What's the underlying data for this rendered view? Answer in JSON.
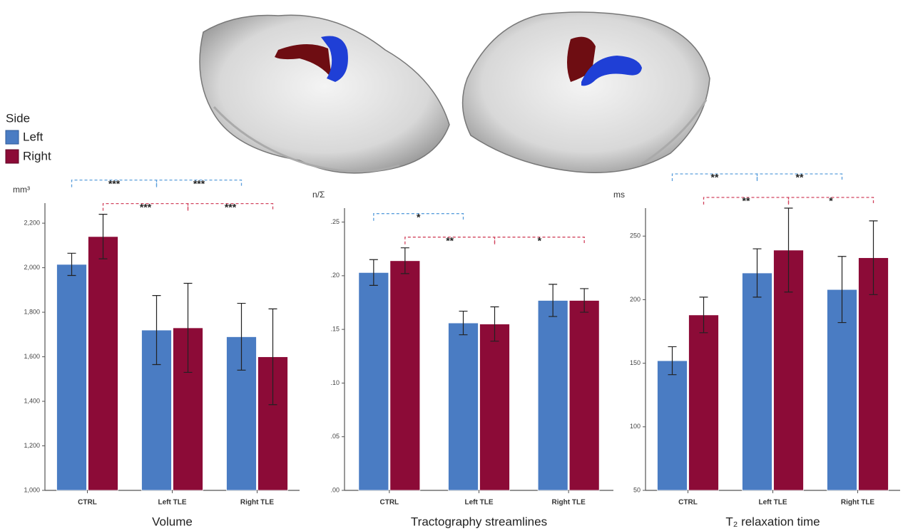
{
  "legend_title": "Side",
  "chart_data": [
    {
      "type": "bar",
      "title": "Volume",
      "y_label": "mm³",
      "categories": [
        "CTRL",
        "Left TLE",
        "Right TLE"
      ],
      "series": [
        {
          "name": "Left",
          "color": "#4a7cc3",
          "values": [
            2015,
            1720,
            1690
          ],
          "errors": [
            50,
            155,
            150
          ]
        },
        {
          "name": "Right",
          "color": "#8c0b37",
          "values": [
            2140,
            1730,
            1600
          ],
          "errors": [
            100,
            200,
            215
          ]
        }
      ],
      "ylim": [
        1000,
        2290
      ],
      "yticks": [
        {
          "value": 1000,
          "label": "1,000"
        },
        {
          "value": 1200,
          "label": "1,200"
        },
        {
          "value": 1400,
          "label": "1,400"
        },
        {
          "value": 1600,
          "label": "1,600"
        },
        {
          "value": 1800,
          "label": "1,800"
        },
        {
          "value": 2000,
          "label": "2,000"
        },
        {
          "value": 2200,
          "label": "2,200"
        }
      ],
      "brackets": [
        {
          "series": "Left",
          "between": [
            "CTRL",
            "Left TLE"
          ],
          "label": "***"
        },
        {
          "series": "Left",
          "between": [
            "Left TLE",
            "Right TLE"
          ],
          "label": "***"
        },
        {
          "series": "Right",
          "between": [
            "CTRL",
            "Left TLE"
          ],
          "label": "***"
        },
        {
          "series": "Right",
          "between": [
            "Left TLE",
            "Right TLE"
          ],
          "label": "***"
        }
      ]
    },
    {
      "type": "bar",
      "title": "Tractography streamlines",
      "y_label": "n/Σ",
      "categories": [
        "CTRL",
        "Left TLE",
        "Right TLE"
      ],
      "series": [
        {
          "name": "Left",
          "color": "#4a7cc3",
          "values": [
            0.203,
            0.156,
            0.177
          ],
          "errors": [
            0.012,
            0.011,
            0.015
          ]
        },
        {
          "name": "Right",
          "color": "#8c0b37",
          "values": [
            0.214,
            0.155,
            0.177
          ],
          "errors": [
            0.012,
            0.016,
            0.011
          ]
        }
      ],
      "ylim": [
        0,
        0.263
      ],
      "yticks": [
        {
          "value": 0,
          "label": ".00"
        },
        {
          "value": 0.05,
          "label": ".05"
        },
        {
          "value": 0.1,
          "label": ".10"
        },
        {
          "value": 0.15,
          "label": ".15"
        },
        {
          "value": 0.2,
          "label": ".20"
        },
        {
          "value": 0.25,
          "label": ".25"
        }
      ],
      "brackets": [
        {
          "series": "Left",
          "between": [
            "CTRL",
            "Left TLE"
          ],
          "label": "*"
        },
        {
          "series": "Right",
          "between": [
            "CTRL",
            "Left TLE"
          ],
          "label": "**"
        },
        {
          "series": "Right",
          "between": [
            "Left TLE",
            "Right TLE"
          ],
          "label": "*"
        }
      ]
    },
    {
      "type": "bar",
      "title": "T₂ relaxation time",
      "y_label": "ms",
      "categories": [
        "CTRL",
        "Left TLE",
        "Right TLE"
      ],
      "series": [
        {
          "name": "Left",
          "color": "#4a7cc3",
          "values": [
            152,
            221,
            208
          ],
          "errors": [
            11,
            19,
            26
          ]
        },
        {
          "name": "Right",
          "color": "#8c0b37",
          "values": [
            188,
            239,
            233
          ],
          "errors": [
            14,
            33,
            29
          ]
        }
      ],
      "ylim": [
        50,
        272
      ],
      "yticks": [
        50,
        100,
        150,
        200,
        250
      ],
      "brackets": [
        {
          "series": "Left",
          "between": [
            "CTRL",
            "Left TLE"
          ],
          "label": "**"
        },
        {
          "series": "Left",
          "between": [
            "Left TLE",
            "Right TLE"
          ],
          "label": "**"
        },
        {
          "series": "Right",
          "between": [
            "CTRL",
            "Left TLE"
          ],
          "label": "**"
        },
        {
          "series": "Right",
          "between": [
            "Left TLE",
            "Right TLE"
          ],
          "label": "*"
        }
      ]
    }
  ]
}
